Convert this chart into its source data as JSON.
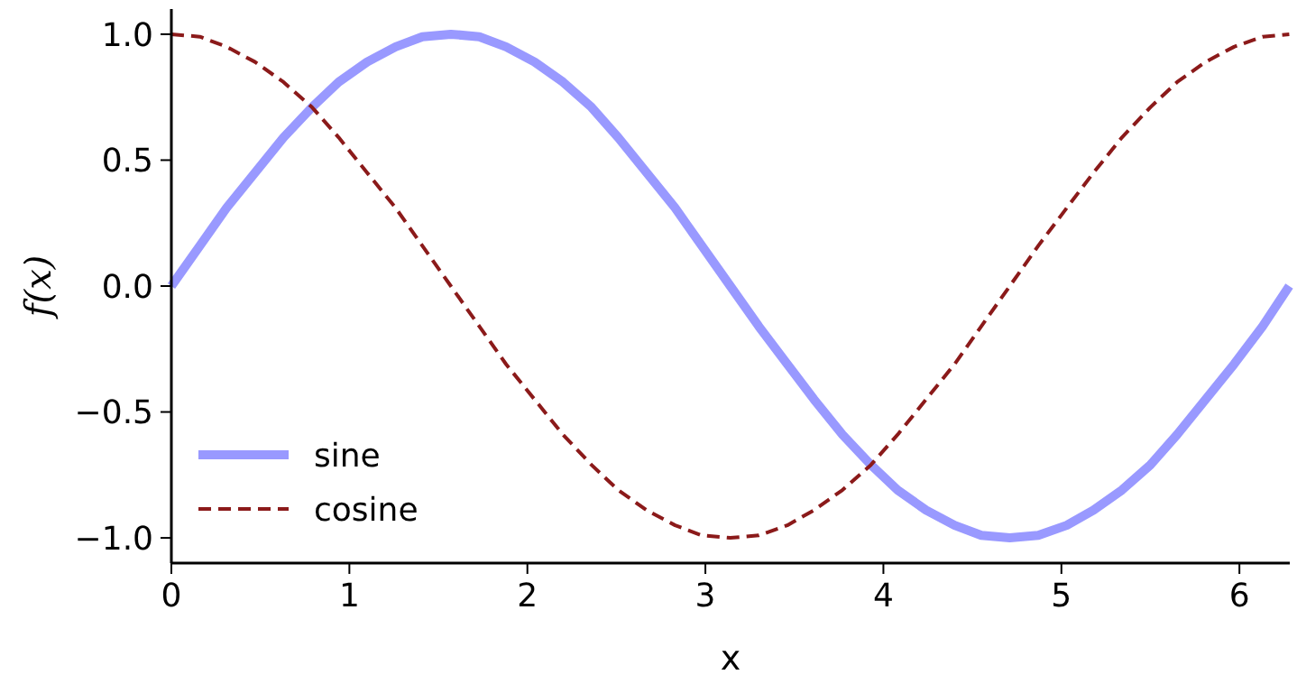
{
  "chart_data": {
    "type": "line",
    "xlabel": "x",
    "ylabel": "f(x)",
    "x": [
      0,
      0.16,
      0.31,
      0.47,
      0.63,
      0.79,
      0.94,
      1.1,
      1.26,
      1.41,
      1.57,
      1.73,
      1.88,
      2.04,
      2.2,
      2.36,
      2.51,
      2.67,
      2.83,
      2.98,
      3.14,
      3.3,
      3.46,
      3.61,
      3.77,
      3.93,
      4.08,
      4.24,
      4.4,
      4.55,
      4.71,
      4.87,
      5.03,
      5.18,
      5.34,
      5.5,
      5.65,
      5.81,
      5.97,
      6.13,
      6.28
    ],
    "series": [
      {
        "name": "sine",
        "color": "#9999ff",
        "line_style": "solid",
        "values": [
          0,
          0.16,
          0.31,
          0.45,
          0.59,
          0.71,
          0.81,
          0.89,
          0.95,
          0.99,
          1,
          0.99,
          0.95,
          0.89,
          0.81,
          0.71,
          0.59,
          0.45,
          0.31,
          0.16,
          0,
          -0.16,
          -0.31,
          -0.45,
          -0.59,
          -0.71,
          -0.81,
          -0.89,
          -0.95,
          -0.99,
          -1,
          -0.99,
          -0.95,
          -0.89,
          -0.81,
          -0.71,
          -0.59,
          -0.45,
          -0.31,
          -0.16,
          0
        ]
      },
      {
        "name": "cosine",
        "color": "#8b1a1a",
        "line_style": "dashed",
        "values": [
          1,
          0.99,
          0.95,
          0.89,
          0.81,
          0.71,
          0.59,
          0.45,
          0.31,
          0.16,
          0,
          -0.16,
          -0.31,
          -0.45,
          -0.59,
          -0.71,
          -0.81,
          -0.89,
          -0.95,
          -0.99,
          -1,
          -0.99,
          -0.95,
          -0.89,
          -0.81,
          -0.71,
          -0.59,
          -0.45,
          -0.31,
          -0.16,
          0,
          0.16,
          0.31,
          0.45,
          0.59,
          0.71,
          0.81,
          0.89,
          0.95,
          0.99,
          1
        ]
      }
    ],
    "xlim": [
      0,
      6.283
    ],
    "ylim": [
      -1.1,
      1.1
    ],
    "xticks": [
      0,
      1,
      2,
      3,
      4,
      5,
      6
    ],
    "yticks": [
      {
        "value": -1,
        "label": "−1.0"
      },
      {
        "value": -0.5,
        "label": "−0.5"
      },
      {
        "value": 0,
        "label": "0.0"
      },
      {
        "value": 0.5,
        "label": "0.5"
      },
      {
        "value": 1,
        "label": "1.0"
      }
    ],
    "grid": false,
    "legend": "bottom left"
  }
}
